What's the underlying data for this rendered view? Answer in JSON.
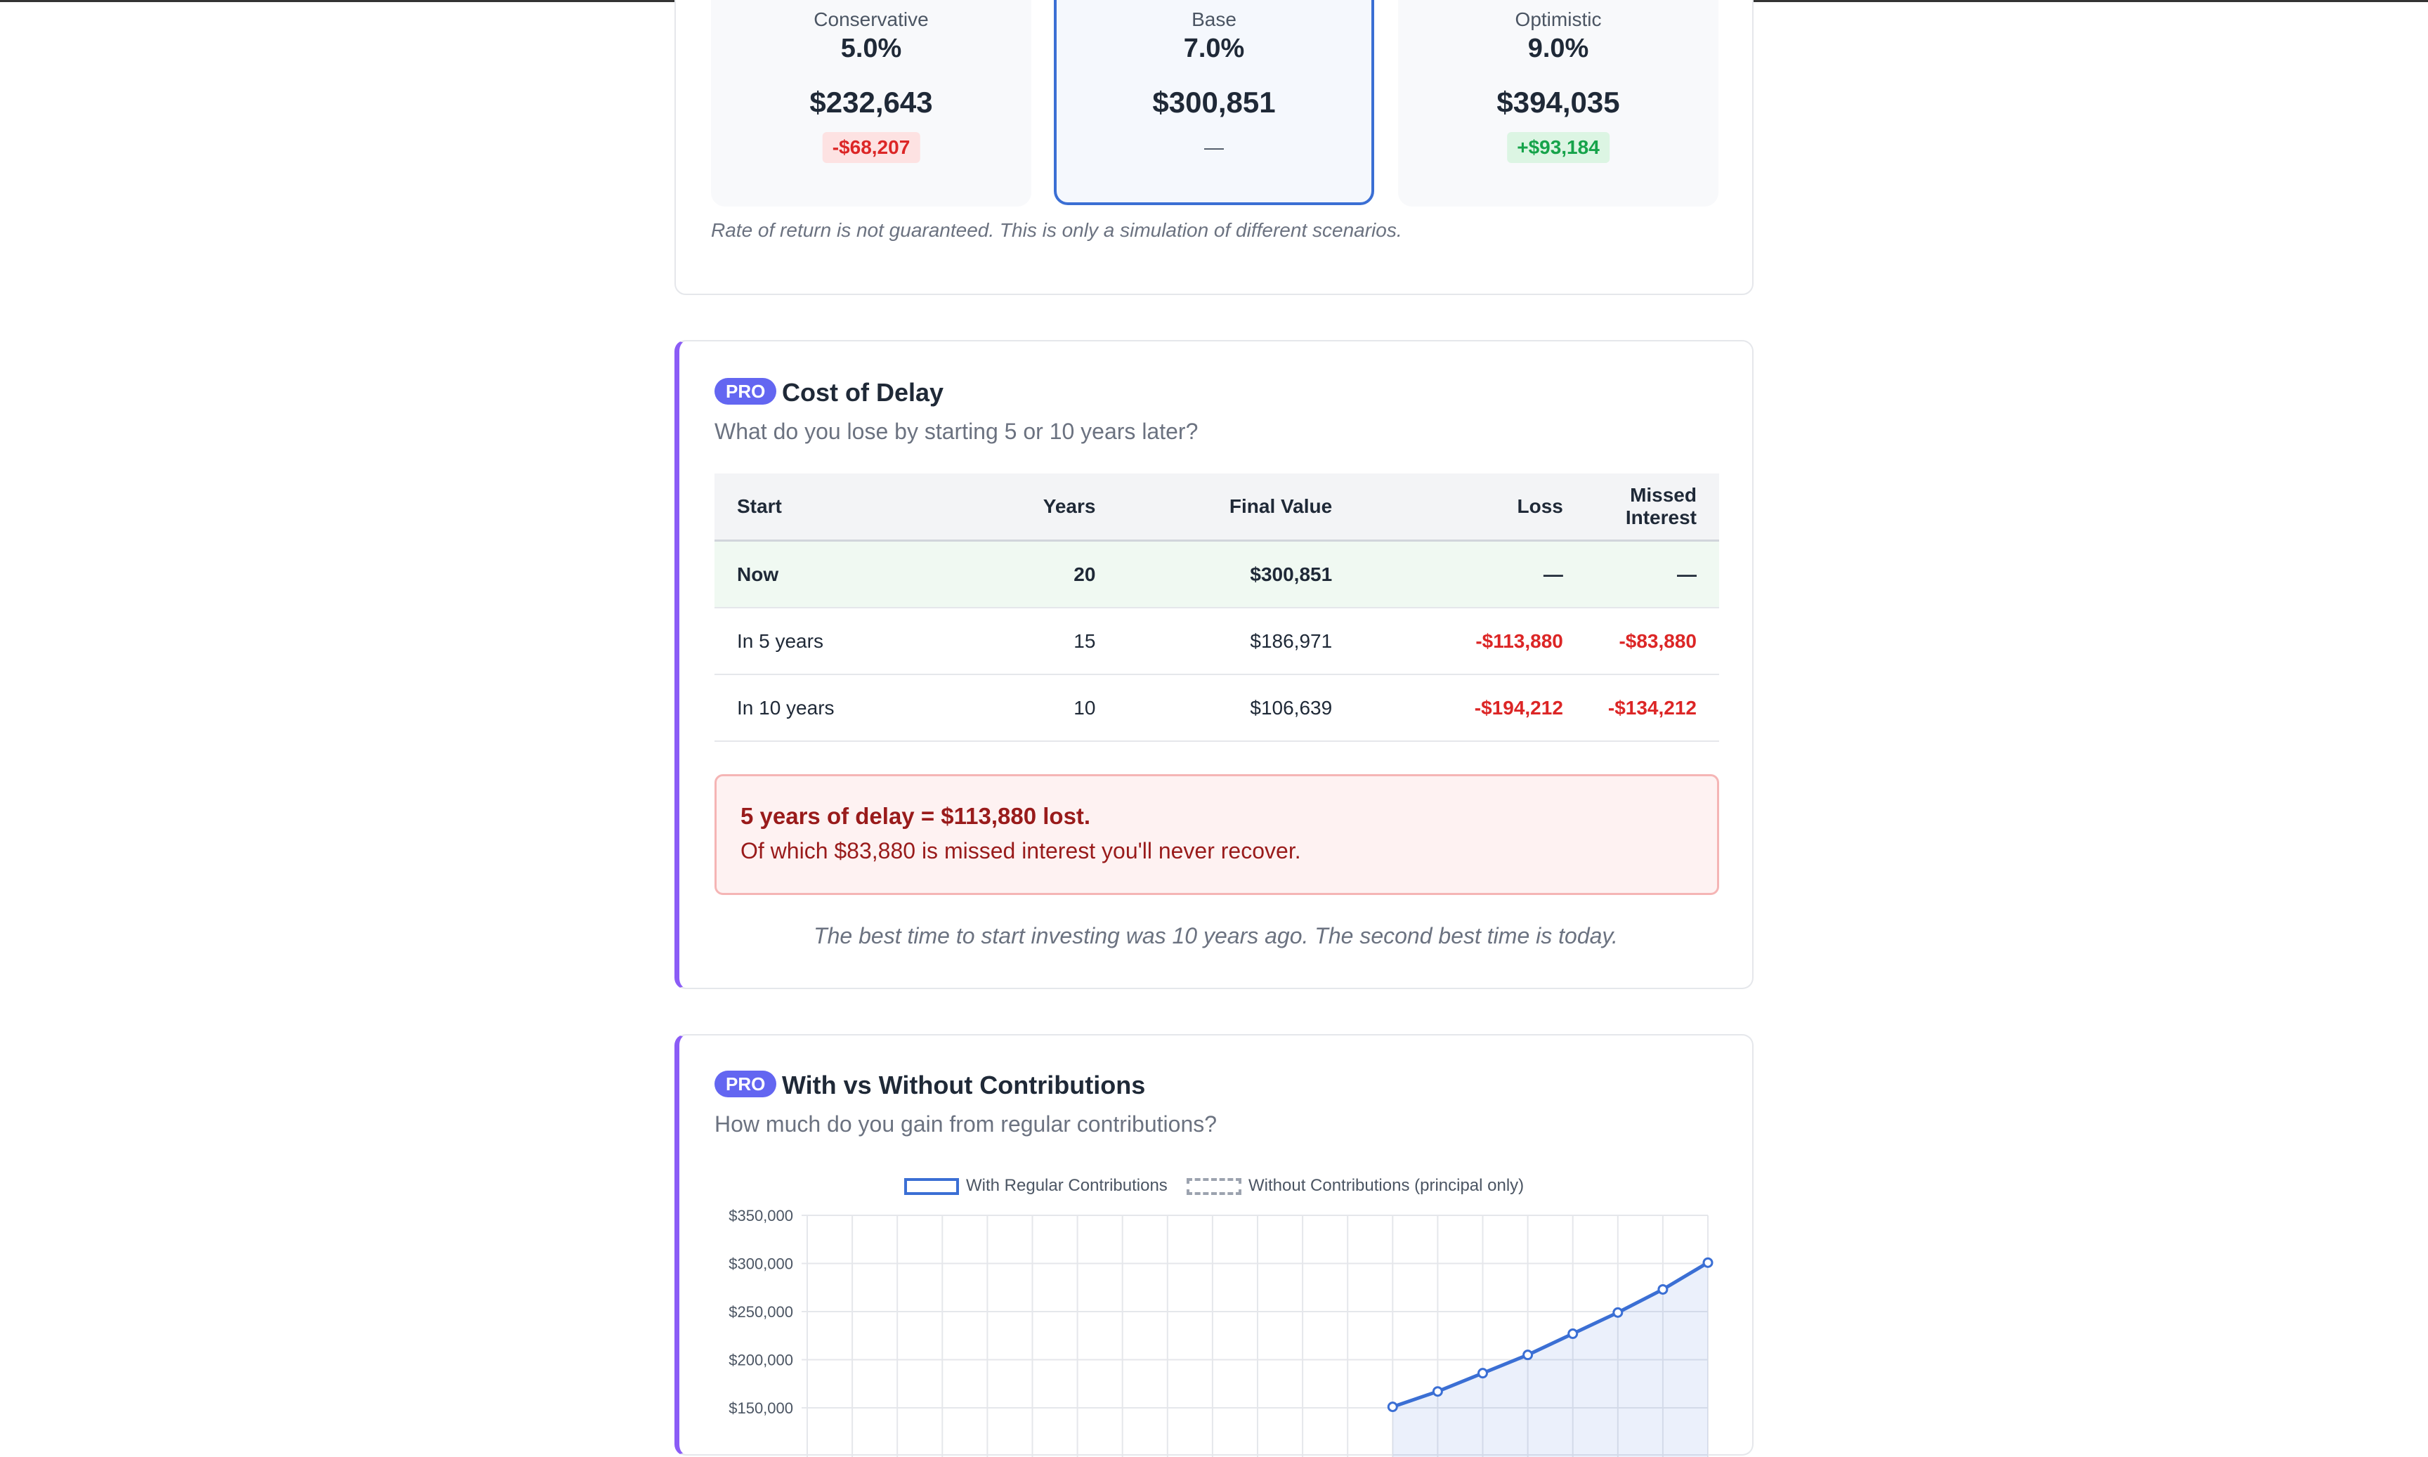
{
  "scenarios": {
    "cards": [
      {
        "name": "Conservative",
        "rate": "5.0%",
        "final": "$232,643",
        "diff": "-$68,207"
      },
      {
        "name": "Base",
        "rate": "7.0%",
        "final": "$300,851",
        "diff": "—"
      },
      {
        "name": "Optimistic",
        "rate": "9.0%",
        "final": "$394,035",
        "diff": "+$93,184"
      }
    ],
    "disclaimer": "Rate of return is not guaranteed. This is only a simulation of different scenarios."
  },
  "delay": {
    "badge": "PRO",
    "title": "Cost of Delay",
    "subtitle": "What do you lose by starting 5 or 10 years later?",
    "columns": [
      "Start",
      "Years",
      "Final Value",
      "Loss",
      "Missed Interest"
    ],
    "rows": [
      {
        "start": "Now",
        "years": "20",
        "final": "$300,851",
        "loss": "—",
        "missed": "—"
      },
      {
        "start": "In 5 years",
        "years": "15",
        "final": "$186,971",
        "loss": "-$113,880",
        "missed": "-$83,880"
      },
      {
        "start": "In 10 years",
        "years": "10",
        "final": "$106,639",
        "loss": "-$194,212",
        "missed": "-$134,212"
      }
    ],
    "alert_head": "5 years of delay = $113,880 lost.",
    "alert_body": "Of which $83,880 is missed interest you'll never recover.",
    "quote": "The best time to start investing was 10 years ago. The second best time is today."
  },
  "contrib": {
    "badge": "PRO",
    "title": "With vs Without Contributions",
    "subtitle": "How much do you gain from regular contributions?"
  },
  "chart_data": {
    "type": "line",
    "legend": [
      "With Regular Contributions",
      "Without Contributions (principal only)"
    ],
    "legend_position": "top",
    "y_ticks": [
      "$350,000",
      "$300,000",
      "$250,000",
      "$200,000",
      "$150,000"
    ],
    "ylim": [
      150000,
      350000
    ],
    "grid": true,
    "series": [
      {
        "name": "With Regular Contributions",
        "color": "#3b6fd4",
        "x": [
          13,
          14,
          15,
          16,
          17,
          18,
          19,
          20
        ],
        "values": [
          151000,
          167000,
          186000,
          205000,
          227000,
          249000,
          273000,
          300851
        ]
      },
      {
        "name": "Without Contributions (principal only)",
        "color": "#9ca3af",
        "x": [],
        "values": []
      }
    ]
  }
}
